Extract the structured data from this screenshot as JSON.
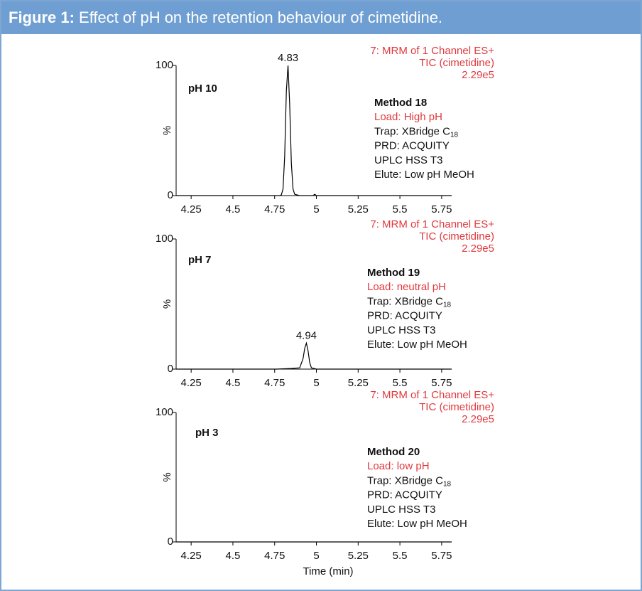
{
  "caption_label": "Figure 1:",
  "caption": "Effect of pH on the retention behaviour of cimetidine.",
  "chart_data": [
    {
      "type": "line",
      "label": "pH 10",
      "peak_label": 4.83,
      "annotations": [
        "7: MRM of 1 Channel ES+",
        "TIC (cimetidine)",
        "2.29e5"
      ],
      "method": {
        "name": "Method 18",
        "load": "Load: High pH",
        "trap": "Trap: XBridge C",
        "trap_subscript": "18",
        "prd": "PRD: ACQUITY",
        "column": "UPLC HSS T3",
        "elute": "Elute: Low pH MeOH"
      },
      "ylabel": "%",
      "color": "#000000",
      "x": [
        4.16,
        4.78,
        4.79,
        4.8,
        4.81,
        4.82,
        4.83,
        4.84,
        4.85,
        4.86,
        4.87,
        4.9,
        4.98,
        4.99,
        5.0,
        5.81
      ],
      "values": [
        0,
        0,
        0.5,
        5,
        30,
        80,
        100,
        70,
        25,
        5,
        1,
        0,
        0,
        1,
        0,
        0
      ],
      "xlim": [
        4.16,
        5.81
      ],
      "xticks": [
        4.25,
        4.5,
        4.75,
        5,
        5.25,
        5.5,
        5.75
      ],
      "ylim": [
        0,
        100
      ],
      "yticks": [
        0,
        100
      ]
    },
    {
      "type": "line",
      "label": "pH 7",
      "peak_label": 4.94,
      "annotations": [
        "7: MRM of 1 Channel ES+",
        "TIC (cimetidine)",
        "2.29e5"
      ],
      "method": {
        "name": "Method 19",
        "load": "Load: neutral pH",
        "trap": "Trap: XBridge C",
        "trap_subscript": "18",
        "prd": "PRD: ACQUITY",
        "column": "UPLC HSS T3",
        "elute": "Elute: Low pH MeOH"
      },
      "ylabel": "%",
      "color": "#000000",
      "x": [
        4.16,
        4.76,
        4.85,
        4.9,
        4.92,
        4.93,
        4.94,
        4.95,
        4.96,
        4.97,
        5.0,
        5.81
      ],
      "values": [
        0,
        0,
        0.5,
        1,
        8,
        16,
        20,
        14,
        5,
        1,
        0,
        0
      ],
      "xlim": [
        4.16,
        5.81
      ],
      "xticks": [
        4.25,
        4.5,
        4.75,
        5,
        5.25,
        5.5,
        5.75
      ],
      "ylim": [
        0,
        100
      ],
      "yticks": [
        0,
        100
      ]
    },
    {
      "type": "line",
      "label": "pH 3",
      "annotations": [
        "7: MRM of 1 Channel ES+",
        "TIC (cimetidine)",
        "2.29e5"
      ],
      "method": {
        "name": "Method 20",
        "load": "Load: low pH",
        "trap": "Trap: XBridge C",
        "trap_subscript": "18",
        "prd": "PRD: ACQUITY",
        "column": "UPLC HSS T3",
        "elute": "Elute: Low pH MeOH"
      },
      "ylabel": "%",
      "xlabel": "Time (min)",
      "color": "#000000",
      "x": [
        4.16,
        5.81
      ],
      "values": [
        0,
        0
      ],
      "xlim": [
        4.16,
        5.81
      ],
      "xticks": [
        4.25,
        4.5,
        4.75,
        5,
        5.25,
        5.5,
        5.75
      ],
      "ylim": [
        0,
        100
      ],
      "yticks": [
        0,
        100
      ]
    }
  ]
}
